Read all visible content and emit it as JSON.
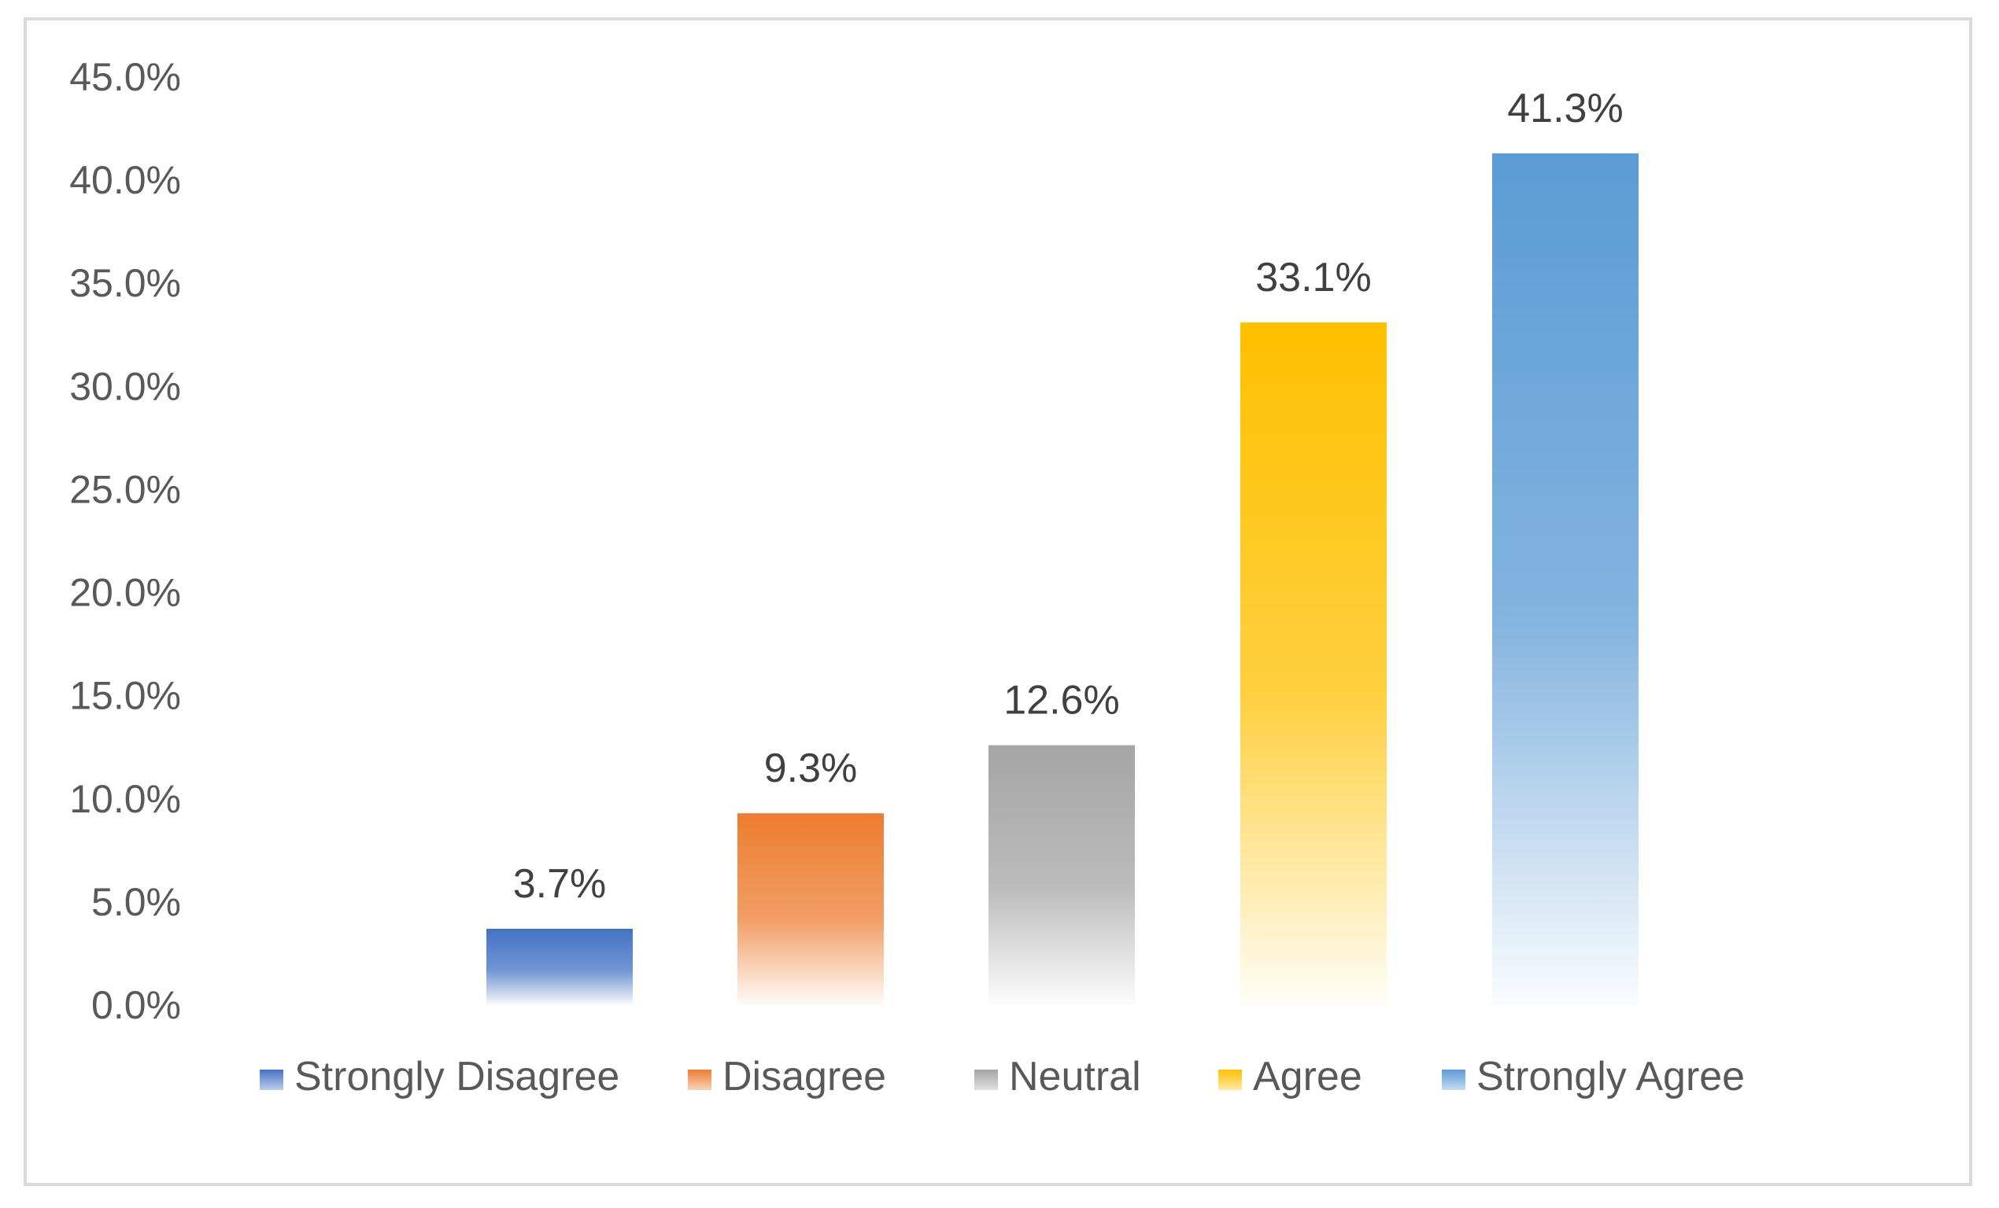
{
  "chart_data": {
    "type": "bar",
    "title": "",
    "xlabel": "",
    "ylabel": "",
    "categories": [
      "Strongly Disagree",
      "Disagree",
      "Neutral",
      "Agree",
      "Strongly Agree"
    ],
    "values": [
      3.7,
      9.3,
      12.6,
      33.1,
      41.3
    ],
    "data_labels": [
      "3.7%",
      "9.3%",
      "12.6%",
      "33.1%",
      "41.3%"
    ],
    "ylim": [
      0,
      45
    ],
    "y_ticks": [
      0,
      5,
      10,
      15,
      20,
      25,
      30,
      35,
      40,
      45
    ],
    "y_tick_labels": [
      "0.0%",
      "5.0%",
      "10.0%",
      "15.0%",
      "20.0%",
      "25.0%",
      "30.0%",
      "35.0%",
      "40.0%",
      "45.0%"
    ],
    "grid": false,
    "legend_position": "bottom",
    "fill_style": "gradient fading to white at baseline",
    "colors": [
      "#4472c4",
      "#ed7d31",
      "#a5a5a5",
      "#ffc000",
      "#5b9bd5"
    ]
  }
}
